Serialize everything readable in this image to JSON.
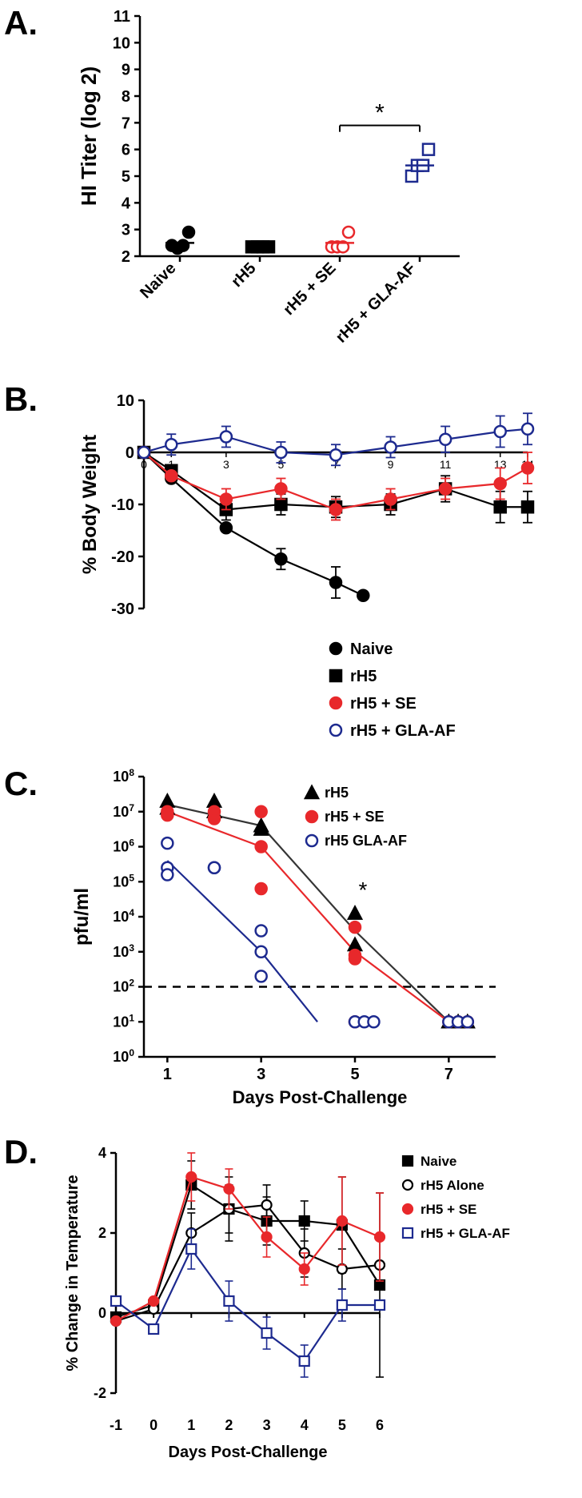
{
  "panelA": {
    "label": "A.",
    "ylabel": "HI Titer (log 2)",
    "ylim": [
      2,
      11
    ],
    "yticks": [
      2,
      3,
      4,
      5,
      6,
      7,
      8,
      9,
      10,
      11
    ],
    "categories": [
      "Naive",
      "rH5",
      "rH5 + SE",
      "rH5 + GLA-AF"
    ],
    "groups": [
      {
        "name": "Naive",
        "marker": "circle-filled",
        "color": "#000000",
        "points": [
          2.4,
          2.3,
          2.4,
          2.9
        ],
        "median": 2.5
      },
      {
        "name": "rH5",
        "marker": "square-filled",
        "color": "#000000",
        "points": [
          2.35,
          2.35,
          2.35,
          2.35
        ],
        "median": 2.4
      },
      {
        "name": "rH5 + SE",
        "marker": "circle-open",
        "color": "#e8282b",
        "points": [
          2.35,
          2.35,
          2.35,
          2.9
        ],
        "median": 2.5
      },
      {
        "name": "rH5 + GLA-AF",
        "marker": "square-open",
        "color": "#1d2a8f",
        "points": [
          5.0,
          5.4,
          5.4,
          6.0
        ],
        "median": 5.4
      }
    ],
    "sig_label": "*",
    "sig_line": {
      "from_group": 2,
      "to_group": 3,
      "y": 6.9
    },
    "axis_color": "#000000",
    "tick_fontsize": 20,
    "label_fontsize": 26,
    "label_fontweight": "bold"
  },
  "panelB": {
    "label": "B.",
    "ylabel": "% Body Weight",
    "ylim": [
      -30,
      10
    ],
    "yticks": [
      -30,
      -20,
      -10,
      0,
      10
    ],
    "xvals": [
      0,
      1,
      3,
      5,
      7,
      9,
      11,
      13,
      14
    ],
    "series": [
      {
        "name": "Naive",
        "marker": "circle-filled",
        "color": "#000000",
        "line": "#000000",
        "pts": [
          [
            0,
            0
          ],
          [
            1,
            -5
          ],
          [
            3,
            -14.5
          ],
          [
            5,
            -20.5
          ],
          [
            7,
            -25
          ],
          [
            8,
            -27.5
          ]
        ],
        "err": [
          [
            5,
            2
          ],
          [
            7,
            3
          ]
        ]
      },
      {
        "name": "rH5",
        "marker": "square-filled",
        "color": "#000000",
        "line": "#000000",
        "pts": [
          [
            0,
            0
          ],
          [
            1,
            -3.5
          ],
          [
            3,
            -11
          ],
          [
            5,
            -10
          ],
          [
            7,
            -10.5
          ],
          [
            9,
            -10
          ],
          [
            11,
            -7
          ],
          [
            13,
            -10.5
          ],
          [
            14,
            -10.5
          ]
        ],
        "err": [
          [
            3,
            2
          ],
          [
            5,
            2
          ],
          [
            7,
            2
          ],
          [
            9,
            2
          ],
          [
            11,
            2.5
          ],
          [
            13,
            3
          ],
          [
            14,
            3
          ]
        ]
      },
      {
        "name": "rH5 + SE",
        "marker": "circle-filled",
        "color": "#e8282b",
        "line": "#e8282b",
        "pts": [
          [
            0,
            0
          ],
          [
            1,
            -4.5
          ],
          [
            3,
            -9
          ],
          [
            5,
            -7
          ],
          [
            7,
            -11
          ],
          [
            9,
            -9
          ],
          [
            11,
            -7
          ],
          [
            13,
            -6
          ],
          [
            14,
            -3
          ]
        ],
        "err": [
          [
            3,
            2
          ],
          [
            5,
            2
          ],
          [
            7,
            2
          ],
          [
            9,
            2
          ],
          [
            11,
            2
          ],
          [
            13,
            3
          ],
          [
            14,
            3
          ]
        ]
      },
      {
        "name": "rH5 + GLA-AF",
        "marker": "circle-open",
        "color": "#1d2a8f",
        "line": "#1d2a8f",
        "pts": [
          [
            0,
            0
          ],
          [
            1,
            1.5
          ],
          [
            3,
            3
          ],
          [
            5,
            0
          ],
          [
            7,
            -0.5
          ],
          [
            9,
            1
          ],
          [
            11,
            2.5
          ],
          [
            13,
            4
          ],
          [
            14,
            4.5
          ]
        ],
        "err": [
          [
            1,
            2
          ],
          [
            3,
            2
          ],
          [
            5,
            2
          ],
          [
            7,
            2
          ],
          [
            9,
            2
          ],
          [
            11,
            2.5
          ],
          [
            13,
            3
          ],
          [
            14,
            3
          ]
        ]
      }
    ],
    "legend": [
      {
        "name": "Naive",
        "marker": "circle-filled",
        "color": "#000000"
      },
      {
        "name": "rH5",
        "marker": "square-filled",
        "color": "#000000"
      },
      {
        "name": "rH5 + SE",
        "marker": "circle-filled",
        "color": "#e8282b"
      },
      {
        "name": "rH5 + GLA-AF",
        "marker": "circle-open",
        "color": "#1d2a8f"
      }
    ]
  },
  "panelC": {
    "label": "C.",
    "ylabel": "pfu/ml",
    "xlabel": "Days Post-Challenge",
    "ylog": true,
    "ylim_exp": [
      0,
      8
    ],
    "yticks_exp": [
      0,
      1,
      2,
      3,
      4,
      5,
      6,
      7,
      8
    ],
    "xlim": [
      0.5,
      8
    ],
    "xticks": [
      1,
      3,
      5,
      7
    ],
    "dashed_y": 2,
    "series": [
      {
        "name": "rH5",
        "marker": "triangle-filled",
        "color": "#000000",
        "line": "#353535",
        "pts": [
          [
            1,
            7.1
          ],
          [
            1,
            7.3
          ],
          [
            2,
            7.3
          ],
          [
            2,
            7.0
          ],
          [
            3,
            6.6
          ],
          [
            3,
            6.5
          ],
          [
            5,
            4.1
          ],
          [
            5,
            3.2
          ],
          [
            7,
            1
          ],
          [
            7.2,
            1
          ],
          [
            7.4,
            1
          ]
        ]
      },
      {
        "name": "rH5 + SE",
        "marker": "circle-filled",
        "color": "#e8282b",
        "line": "#e8282b",
        "pts": [
          [
            1,
            7.0
          ],
          [
            1,
            6.9
          ],
          [
            2,
            7.0
          ],
          [
            2,
            6.8
          ],
          [
            3,
            7.0
          ],
          [
            3,
            6.0
          ],
          [
            3,
            4.8
          ],
          [
            5,
            3.7
          ],
          [
            5,
            2.9
          ],
          [
            5,
            2.8
          ],
          [
            5,
            1
          ],
          [
            7,
            1
          ],
          [
            7.2,
            1
          ],
          [
            7.4,
            1
          ]
        ]
      },
      {
        "name": "rH5 GLA-AF",
        "marker": "circle-open",
        "color": "#1d2a8f",
        "line": "#1d2a8f",
        "pts": [
          [
            1,
            6.1
          ],
          [
            1,
            5.4
          ],
          [
            1,
            5.2
          ],
          [
            2,
            5.4
          ],
          [
            2,
            5.4
          ],
          [
            3,
            3.6
          ],
          [
            3,
            3.0
          ],
          [
            3,
            2.3
          ],
          [
            5,
            1
          ],
          [
            5.2,
            1
          ],
          [
            5.4,
            1
          ],
          [
            7,
            1
          ],
          [
            7.2,
            1
          ],
          [
            7.4,
            1
          ]
        ]
      }
    ],
    "fit_lines": [
      {
        "color": "#353535",
        "pts": [
          [
            1,
            7.2
          ],
          [
            3,
            6.6
          ],
          [
            5,
            3.6
          ],
          [
            7,
            1
          ]
        ]
      },
      {
        "color": "#e8282b",
        "pts": [
          [
            1,
            7.0
          ],
          [
            3,
            6.0
          ],
          [
            5,
            3.0
          ],
          [
            7,
            1
          ]
        ]
      },
      {
        "color": "#1d2a8f",
        "pts": [
          [
            1,
            5.6
          ],
          [
            3,
            3.0
          ],
          [
            4.2,
            1
          ]
        ]
      }
    ],
    "sig_label": "*",
    "sig_pos": [
      5,
      4.5
    ],
    "legend": [
      {
        "name": "rH5",
        "marker": "triangle-filled",
        "color": "#000000"
      },
      {
        "name": "rH5 + SE",
        "marker": "circle-filled",
        "color": "#e8282b"
      },
      {
        "name": "rH5 GLA-AF",
        "marker": "circle-open",
        "color": "#1d2a8f"
      }
    ]
  },
  "panelD": {
    "label": "D.",
    "ylabel": "% Change in Temperature",
    "xlabel": "Days Post-Challenge",
    "ylim": [
      -2,
      4
    ],
    "yticks": [
      -2,
      0,
      2,
      4
    ],
    "xvals": [
      -1,
      0,
      1,
      2,
      3,
      4,
      5,
      6
    ],
    "series": [
      {
        "name": "Naive",
        "marker": "square-filled",
        "color": "#000000",
        "line": "#000000",
        "pts": [
          [
            -1,
            -0.1
          ],
          [
            0,
            0.2
          ],
          [
            1,
            3.2
          ],
          [
            2,
            2.6
          ],
          [
            3,
            2.3
          ],
          [
            4,
            2.3
          ],
          [
            5,
            2.2
          ],
          [
            6,
            0.7
          ]
        ],
        "err": [
          [
            1,
            0.6
          ],
          [
            2,
            0.8
          ],
          [
            3,
            0.6
          ],
          [
            4,
            0.5
          ],
          [
            5,
            1.2
          ],
          [
            6,
            2.3
          ]
        ]
      },
      {
        "name": "rH5 Alone",
        "marker": "circle-open",
        "color": "#000000",
        "line": "#000000",
        "pts": [
          [
            -1,
            -0.2
          ],
          [
            0,
            0.1
          ],
          [
            1,
            2.0
          ],
          [
            2,
            2.6
          ],
          [
            3,
            2.7
          ],
          [
            4,
            1.5
          ],
          [
            5,
            1.1
          ],
          [
            6,
            1.2
          ]
        ],
        "err": [
          [
            1,
            0.5
          ],
          [
            2,
            0.6
          ],
          [
            3,
            0.5
          ],
          [
            4,
            0.6
          ],
          [
            5,
            0.5
          ]
        ]
      },
      {
        "name": "rH5 + SE",
        "marker": "circle-filled",
        "color": "#e8282b",
        "line": "#e8282b",
        "pts": [
          [
            -1,
            -0.2
          ],
          [
            0,
            0.3
          ],
          [
            1,
            3.4
          ],
          [
            2,
            3.1
          ],
          [
            3,
            1.9
          ],
          [
            4,
            1.1
          ],
          [
            5,
            2.3
          ],
          [
            6,
            1.9
          ]
        ],
        "err": [
          [
            1,
            0.6
          ],
          [
            2,
            0.5
          ],
          [
            3,
            0.5
          ],
          [
            4,
            0.4
          ],
          [
            5,
            1.1
          ],
          [
            6,
            1.1
          ]
        ]
      },
      {
        "name": "rH5 + GLA-AF",
        "marker": "square-open",
        "color": "#1d2a8f",
        "line": "#1d2a8f",
        "pts": [
          [
            -1,
            0.3
          ],
          [
            0,
            -0.4
          ],
          [
            1,
            1.6
          ],
          [
            2,
            0.3
          ],
          [
            3,
            -0.5
          ],
          [
            4,
            -1.2
          ],
          [
            5,
            0.2
          ],
          [
            6,
            0.2
          ]
        ],
        "err": [
          [
            1,
            0.5
          ],
          [
            2,
            0.5
          ],
          [
            3,
            0.4
          ],
          [
            4,
            0.4
          ],
          [
            5,
            0.4
          ]
        ]
      }
    ],
    "legend": [
      {
        "name": "Naive",
        "marker": "square-filled",
        "color": "#000000"
      },
      {
        "name": "rH5 Alone",
        "marker": "circle-open",
        "color": "#000000"
      },
      {
        "name": "rH5 + SE",
        "marker": "circle-filled",
        "color": "#e8282b"
      },
      {
        "name": "rH5 + GLA-AF",
        "marker": "square-open",
        "color": "#1d2a8f"
      }
    ]
  },
  "style": {
    "panel_label_fontsize": 42,
    "axis_linewidth": 2.5,
    "marker_radius": 7,
    "marker_stroke": 2.5,
    "line_width": 2.2,
    "err_cap": 6
  }
}
